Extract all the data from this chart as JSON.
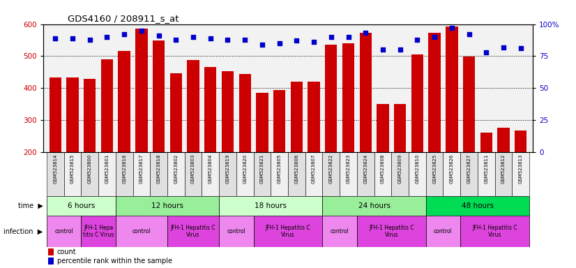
{
  "title": "GDS4160 / 208911_s_at",
  "samples": [
    "GSM523814",
    "GSM523815",
    "GSM523800",
    "GSM523801",
    "GSM523816",
    "GSM523817",
    "GSM523818",
    "GSM523802",
    "GSM523803",
    "GSM523804",
    "GSM523819",
    "GSM523820",
    "GSM523821",
    "GSM523805",
    "GSM523806",
    "GSM523807",
    "GSM523822",
    "GSM523823",
    "GSM523824",
    "GSM523808",
    "GSM523809",
    "GSM523810",
    "GSM523825",
    "GSM523826",
    "GSM523827",
    "GSM523811",
    "GSM523812",
    "GSM523813"
  ],
  "counts": [
    434,
    434,
    428,
    489,
    517,
    585,
    549,
    447,
    487,
    466,
    452,
    444,
    385,
    393,
    421,
    419,
    535,
    540,
    572,
    350,
    350,
    505,
    572,
    593,
    499,
    261,
    276,
    268
  ],
  "percentiles": [
    89,
    89,
    88,
    90,
    92,
    95,
    91,
    88,
    90,
    89,
    88,
    88,
    84,
    85,
    87,
    86,
    90,
    90,
    93,
    80,
    80,
    88,
    90,
    97,
    92,
    78,
    82,
    81
  ],
  "bar_color": "#CC0000",
  "dot_color": "#0000CC",
  "ylim_left": [
    200,
    600
  ],
  "ylim_right": [
    0,
    100
  ],
  "yticks_left": [
    200,
    300,
    400,
    500,
    600
  ],
  "yticks_right": [
    0,
    25,
    50,
    75,
    100
  ],
  "time_groups": [
    {
      "label": "6 hours",
      "start": 0,
      "end": 4,
      "color": "#CCFFCC"
    },
    {
      "label": "12 hours",
      "start": 4,
      "end": 10,
      "color": "#99EE99"
    },
    {
      "label": "18 hours",
      "start": 10,
      "end": 16,
      "color": "#CCFFCC"
    },
    {
      "label": "24 hours",
      "start": 16,
      "end": 22,
      "color": "#99EE99"
    },
    {
      "label": "48 hours",
      "start": 22,
      "end": 28,
      "color": "#00DD55"
    }
  ],
  "infection_groups": [
    {
      "label": "control",
      "start": 0,
      "end": 2,
      "color": "#EE88EE"
    },
    {
      "label": "JFH-1 Hepa\ntitis C Virus",
      "start": 2,
      "end": 4,
      "color": "#DD44DD"
    },
    {
      "label": "control",
      "start": 4,
      "end": 7,
      "color": "#EE88EE"
    },
    {
      "label": "JFH-1 Hepatitis C\nVirus",
      "start": 7,
      "end": 10,
      "color": "#DD44DD"
    },
    {
      "label": "control",
      "start": 10,
      "end": 12,
      "color": "#EE88EE"
    },
    {
      "label": "JFH-1 Hepatitis C\nVirus",
      "start": 12,
      "end": 16,
      "color": "#DD44DD"
    },
    {
      "label": "control",
      "start": 16,
      "end": 18,
      "color": "#EE88EE"
    },
    {
      "label": "JFH-1 Hepatitis C\nVirus",
      "start": 18,
      "end": 22,
      "color": "#DD44DD"
    },
    {
      "label": "control",
      "start": 22,
      "end": 24,
      "color": "#EE88EE"
    },
    {
      "label": "JFH-1 Hepatitis C\nVirus",
      "start": 24,
      "end": 28,
      "color": "#DD44DD"
    }
  ],
  "legend_count_color": "#CC0000",
  "legend_dot_color": "#0000CC",
  "bg_color": "#FFFFFF",
  "plot_bg_color": "#F2F2F2"
}
